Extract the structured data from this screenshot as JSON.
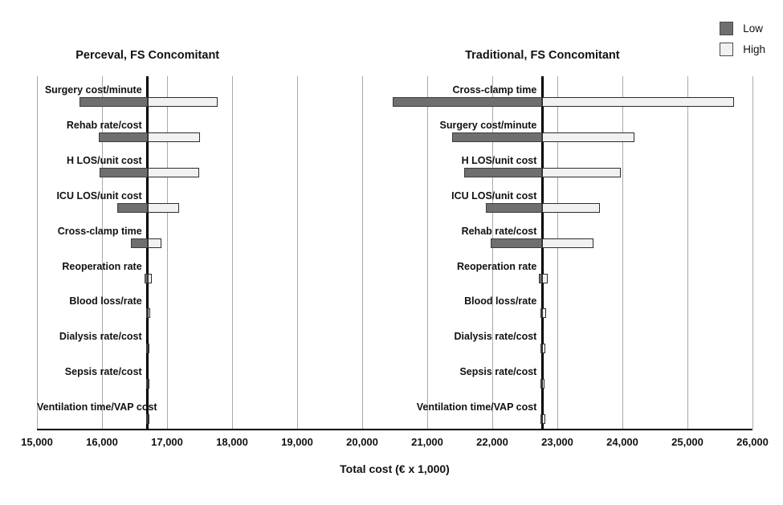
{
  "xlabel": "Total cost (€ x 1,000)",
  "legend": {
    "items": [
      {
        "name": "low",
        "label": "Low",
        "color": "#6f6f6f"
      },
      {
        "name": "high",
        "label": "High",
        "color": "#f1f1f1"
      }
    ]
  },
  "colors": {
    "low_fill": "#6f6f6f",
    "high_fill": "#f1f1f1",
    "gridline": "#a9a9a9",
    "baseline": "#000000"
  },
  "axis": {
    "min": 15000,
    "max": 26000,
    "ticks": [
      {
        "value": 15000,
        "label": "15,000"
      },
      {
        "value": 16000,
        "label": "16,000"
      },
      {
        "value": 17000,
        "label": "17,000"
      },
      {
        "value": 18000,
        "label": "18,000"
      },
      {
        "value": 19000,
        "label": "19,000"
      },
      {
        "value": 20000,
        "label": "20,000"
      },
      {
        "value": 21000,
        "label": "21,000"
      },
      {
        "value": 22000,
        "label": "22,000"
      },
      {
        "value": 23000,
        "label": "23,000"
      },
      {
        "value": 24000,
        "label": "24,000"
      },
      {
        "value": 25000,
        "label": "25,000"
      },
      {
        "value": 26000,
        "label": "26,000"
      }
    ],
    "grid": true
  },
  "chart_data": [
    {
      "type": "bar",
      "subtype": "tornado",
      "title": "Perceval, FS Concomitant",
      "base_value": 16700,
      "legend_low": "Low",
      "legend_high": "High",
      "rows": [
        {
          "label": "Surgery cost/minute",
          "low": 15660,
          "high": 17780
        },
        {
          "label": "Rehab rate/cost",
          "low": 15950,
          "high": 17510
        },
        {
          "label": "H LOS/unit cost",
          "low": 15960,
          "high": 17490
        },
        {
          "label": "ICU LOS/unit cost",
          "low": 16230,
          "high": 17180
        },
        {
          "label": "Cross-clamp time",
          "low": 16450,
          "high": 16910
        },
        {
          "label": "Reoperation rate",
          "low": 16650,
          "high": 16760
        },
        {
          "label": "Blood loss/rate",
          "low": 16680,
          "high": 16740
        },
        {
          "label": "Dialysis rate/cost",
          "low": 16700,
          "high": 16730
        },
        {
          "label": "Sepsis rate/cost",
          "low": 16685,
          "high": 16725
        },
        {
          "label": "Ventilation time/VAP cost",
          "low": 16685,
          "high": 16725
        }
      ]
    },
    {
      "type": "bar",
      "subtype": "tornado",
      "title": "Traditional, FS Concomitant",
      "base_value": 22770,
      "legend_low": "Low",
      "legend_high": "High",
      "rows": [
        {
          "label": "Cross-clamp time",
          "low": 20470,
          "high": 25720
        },
        {
          "label": "Surgery cost/minute",
          "low": 21380,
          "high": 24190
        },
        {
          "label": "H LOS/unit cost",
          "low": 21570,
          "high": 23970
        },
        {
          "label": "ICU LOS/unit cost",
          "low": 21900,
          "high": 23650
        },
        {
          "label": "Rehab rate/cost",
          "low": 21980,
          "high": 23560
        },
        {
          "label": "Reoperation rate",
          "low": 22720,
          "high": 22850
        },
        {
          "label": "Blood loss/rate",
          "low": 22740,
          "high": 22830
        },
        {
          "label": "Dialysis rate/cost",
          "low": 22780,
          "high": 22815
        },
        {
          "label": "Sepsis rate/cost",
          "low": 22760,
          "high": 22800
        },
        {
          "label": "Ventilation time/VAP cost",
          "low": 22770,
          "high": 22810
        }
      ]
    }
  ]
}
